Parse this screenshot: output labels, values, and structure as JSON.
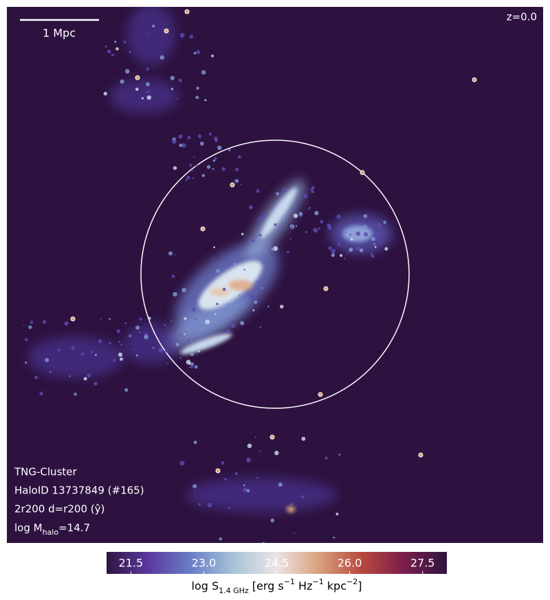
{
  "chart_data": {
    "type": "image",
    "scale_bar": "1 Mpc",
    "redshift": "z=0.0",
    "info_lines": [
      "TNG-Cluster",
      "HaloID 13737849 (#165)",
      "2r200 d=r200 (ŷ)"
    ],
    "mass_label": [
      "log M",
      "halo",
      "=14.7"
    ],
    "colorbar_label": [
      "log S",
      "1.4 GHz",
      " [erg s",
      "−1",
      " Hz",
      "−1",
      " kpc",
      "−2",
      "]"
    ],
    "clim": [
      21,
      28
    ],
    "cticks": [
      21.5,
      {
        "value": 23,
        "label": "23.0"
      },
      24.5,
      {
        "value": 26,
        "label": "26.0"
      },
      27.5
    ],
    "colormap": [
      "#2f1440",
      "#5a3aa0",
      "#6a7fc8",
      "#a8c4d8",
      "#ece4e6",
      "#d9a07c",
      "#b8483e",
      "#7a1d4c",
      "#2f1440"
    ],
    "background": "#2d1240"
  }
}
